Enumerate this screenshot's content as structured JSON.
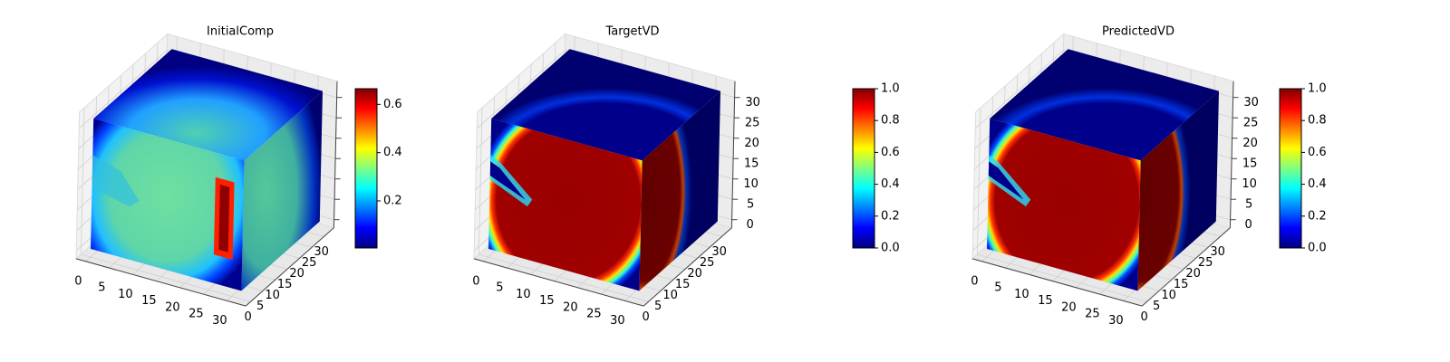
{
  "chart_data": [
    {
      "type": "voxel3d",
      "title": "InitialComp",
      "xlim": [
        -2,
        34
      ],
      "ylim": [
        -2,
        34
      ],
      "zlim": [
        -2,
        34
      ],
      "xticks": [
        0,
        5,
        10,
        15,
        20,
        25,
        30
      ],
      "yticks": [
        0,
        5,
        10,
        15,
        20,
        25,
        30
      ],
      "zticks": [
        0,
        5,
        10,
        15,
        20,
        25,
        30
      ],
      "ztick_labels": false,
      "colormap": "jet",
      "clim": [
        0.005,
        0.665
      ],
      "cticks": [
        0.2,
        0.4,
        0.6
      ]
    },
    {
      "type": "voxel3d",
      "title": "TargetVD",
      "xlim": [
        -2,
        34
      ],
      "ylim": [
        -2,
        34
      ],
      "zlim": [
        -2,
        34
      ],
      "xticks": [
        0,
        5,
        10,
        15,
        20,
        25,
        30
      ],
      "yticks": [
        0,
        5,
        10,
        15,
        20,
        25,
        30
      ],
      "zticks": [
        0,
        5,
        10,
        15,
        20,
        25,
        30
      ],
      "ztick_labels": true,
      "colormap": "jet",
      "clim": [
        0,
        1
      ],
      "cticks": [
        {
          "value": 0,
          "label": "0.0"
        },
        0.2,
        0.4,
        0.6,
        0.8,
        {
          "value": 1,
          "label": "1.0"
        }
      ]
    },
    {
      "type": "voxel3d",
      "title": "PredictedVD",
      "xlim": [
        -2,
        34
      ],
      "ylim": [
        -2,
        34
      ],
      "zlim": [
        -2,
        34
      ],
      "xticks": [
        0,
        5,
        10,
        15,
        20,
        25,
        30
      ],
      "yticks": [
        0,
        5,
        10,
        15,
        20,
        25,
        30
      ],
      "zticks": [
        0,
        5,
        10,
        15,
        20,
        25,
        30
      ],
      "ztick_labels": true,
      "colormap": "jet",
      "clim": [
        0,
        1
      ],
      "cticks": [
        {
          "value": 0,
          "label": "0.0"
        },
        0.2,
        0.4,
        0.6,
        0.8,
        {
          "value": 1,
          "label": "1.0"
        }
      ]
    }
  ]
}
